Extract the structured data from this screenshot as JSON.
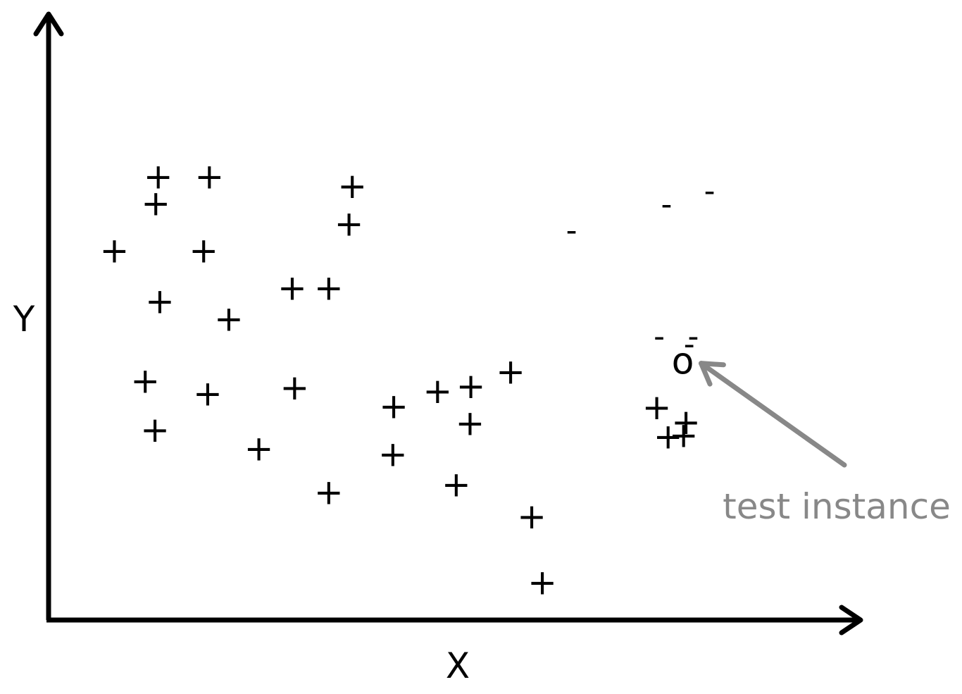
{
  "chart_data": {
    "type": "scatter",
    "title": "",
    "xlabel": "X",
    "ylabel": "Y",
    "grid": false,
    "legend": "none",
    "ticks": false,
    "xlim": [
      0,
      100
    ],
    "ylim": [
      0,
      100
    ],
    "series": [
      {
        "marker": "+",
        "points": [
          [
            13.5,
            73.2
          ],
          [
            19.8,
            73.2
          ],
          [
            13.2,
            68.8
          ],
          [
            8.1,
            61.0
          ],
          [
            19.1,
            61.0
          ],
          [
            13.7,
            52.6
          ],
          [
            22.2,
            49.7
          ],
          [
            30.0,
            54.8
          ],
          [
            34.5,
            54.8
          ],
          [
            37.4,
            71.6
          ],
          [
            37.0,
            65.4
          ],
          [
            11.9,
            39.5
          ],
          [
            19.6,
            37.4
          ],
          [
            30.3,
            38.4
          ],
          [
            47.9,
            37.8
          ],
          [
            52.0,
            38.6
          ],
          [
            56.9,
            41.0
          ],
          [
            42.5,
            35.3
          ],
          [
            13.1,
            31.4
          ],
          [
            25.9,
            28.3
          ],
          [
            51.9,
            32.5
          ],
          [
            42.4,
            27.4
          ],
          [
            50.2,
            22.4
          ],
          [
            34.5,
            21.1
          ],
          [
            59.5,
            17.1
          ],
          [
            60.8,
            6.2
          ],
          [
            74.9,
            35.1
          ],
          [
            78.5,
            32.7
          ],
          [
            78.2,
            30.5
          ],
          [
            76.3,
            30.3
          ]
        ]
      },
      {
        "marker": "-",
        "points": [
          [
            76.1,
            68.6
          ],
          [
            81.4,
            70.8
          ],
          [
            64.4,
            64.3
          ],
          [
            75.2,
            46.8
          ],
          [
            79.4,
            46.8
          ],
          [
            78.9,
            45.5
          ]
        ]
      }
    ],
    "test_point": {
      "marker": "o",
      "x": 78.1,
      "y": 42.6
    },
    "annotation": {
      "text": "test instance",
      "color": "#888888"
    }
  }
}
